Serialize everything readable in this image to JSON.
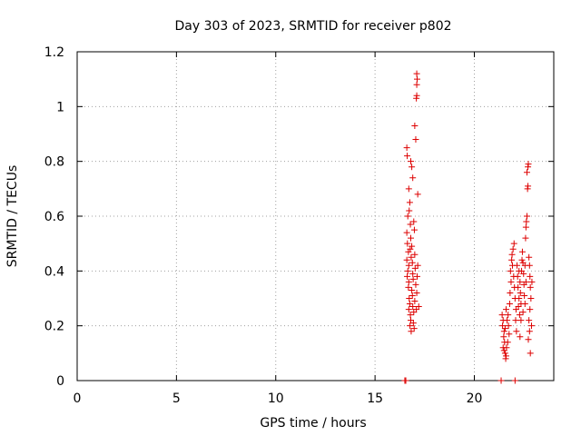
{
  "chart_data": {
    "type": "scatter",
    "title": "Day 303 of 2023, SRMTID for receiver p802",
    "xlabel": "GPS time / hours",
    "ylabel": "SRMTID / TECUs",
    "xlim": [
      0,
      24
    ],
    "ylim": [
      0,
      1.2
    ],
    "xticks": [
      0,
      5,
      10,
      15,
      20
    ],
    "yticks": [
      0,
      0.2,
      0.4,
      0.6,
      0.8,
      1,
      1.2
    ],
    "xtick_labels": [
      "0",
      "5",
      "10",
      "15",
      "20"
    ],
    "ytick_labels": [
      "0",
      "0.2",
      "0.4",
      "0.6",
      "0.8",
      "1",
      "1.2"
    ],
    "grid": true,
    "marker": "+",
    "color": "#dd0000",
    "series": [
      {
        "points": [
          [
            16.5,
            0.0
          ],
          [
            16.55,
            0.0
          ],
          [
            16.6,
            0.85
          ],
          [
            16.62,
            0.82
          ],
          [
            16.65,
            0.6
          ],
          [
            16.6,
            0.54
          ],
          [
            16.63,
            0.5
          ],
          [
            16.68,
            0.47
          ],
          [
            16.6,
            0.44
          ],
          [
            16.7,
            0.42
          ],
          [
            16.65,
            0.4
          ],
          [
            16.62,
            0.38
          ],
          [
            16.7,
            0.36
          ],
          [
            16.68,
            0.34
          ],
          [
            16.72,
            0.3
          ],
          [
            16.75,
            0.28
          ],
          [
            16.7,
            0.26
          ],
          [
            16.78,
            0.24
          ],
          [
            16.8,
            0.22
          ],
          [
            16.76,
            0.2
          ],
          [
            16.82,
            0.18
          ],
          [
            16.7,
            0.7
          ],
          [
            16.75,
            0.65
          ],
          [
            16.78,
            0.57
          ],
          [
            16.8,
            0.52
          ],
          [
            16.85,
            0.49
          ],
          [
            16.82,
            0.45
          ],
          [
            16.88,
            0.43
          ],
          [
            16.9,
            0.39
          ],
          [
            16.92,
            0.37
          ],
          [
            16.85,
            0.33
          ],
          [
            16.88,
            0.31
          ],
          [
            16.9,
            0.27
          ],
          [
            16.95,
            0.25
          ],
          [
            16.93,
            0.21
          ],
          [
            16.97,
            0.19
          ],
          [
            16.8,
            0.8
          ],
          [
            16.85,
            0.78
          ],
          [
            16.9,
            0.74
          ],
          [
            16.95,
            0.58
          ],
          [
            17.0,
            0.46
          ],
          [
            17.02,
            0.41
          ],
          [
            17.05,
            0.35
          ],
          [
            17.0,
            0.29
          ],
          [
            17.08,
            0.26
          ],
          [
            17.1,
            0.32
          ],
          [
            17.12,
            0.38
          ],
          [
            17.0,
            0.93
          ],
          [
            17.05,
            0.88
          ],
          [
            17.08,
            1.03
          ],
          [
            17.1,
            1.04
          ],
          [
            17.1,
            1.08
          ],
          [
            17.12,
            1.1
          ],
          [
            17.1,
            1.12
          ],
          [
            17.15,
            0.68
          ],
          [
            17.2,
            0.27
          ],
          [
            17.15,
            0.42
          ],
          [
            16.98,
            0.55
          ],
          [
            16.72,
            0.62
          ],
          [
            16.77,
            0.48
          ]
        ]
      },
      {
        "points": [
          [
            21.35,
            0.0
          ],
          [
            22.05,
            0.0
          ],
          [
            21.4,
            0.24
          ],
          [
            21.45,
            0.22
          ],
          [
            21.42,
            0.2
          ],
          [
            21.5,
            0.18
          ],
          [
            21.48,
            0.16
          ],
          [
            21.52,
            0.14
          ],
          [
            21.45,
            0.12
          ],
          [
            21.5,
            0.11
          ],
          [
            21.55,
            0.1
          ],
          [
            21.6,
            0.09
          ],
          [
            21.58,
            0.08
          ],
          [
            21.62,
            0.12
          ],
          [
            21.55,
            0.19
          ],
          [
            21.65,
            0.22
          ],
          [
            21.7,
            0.24
          ],
          [
            21.6,
            0.26
          ],
          [
            21.72,
            0.2
          ],
          [
            21.75,
            0.17
          ],
          [
            21.68,
            0.14
          ],
          [
            21.78,
            0.28
          ],
          [
            21.8,
            0.32
          ],
          [
            21.85,
            0.36
          ],
          [
            21.82,
            0.4
          ],
          [
            21.88,
            0.44
          ],
          [
            21.9,
            0.46
          ],
          [
            21.95,
            0.48
          ],
          [
            22.0,
            0.5
          ],
          [
            21.92,
            0.42
          ],
          [
            21.98,
            0.38
          ],
          [
            22.02,
            0.34
          ],
          [
            22.05,
            0.3
          ],
          [
            22.1,
            0.26
          ],
          [
            22.08,
            0.22
          ],
          [
            22.12,
            0.18
          ],
          [
            22.15,
            0.42
          ],
          [
            22.18,
            0.38
          ],
          [
            22.2,
            0.34
          ],
          [
            22.25,
            0.3
          ],
          [
            22.22,
            0.27
          ],
          [
            22.28,
            0.24
          ],
          [
            22.3,
            0.36
          ],
          [
            22.32,
            0.32
          ],
          [
            22.35,
            0.28
          ],
          [
            22.38,
            0.4
          ],
          [
            22.4,
            0.44
          ],
          [
            22.42,
            0.47
          ],
          [
            22.45,
            0.43
          ],
          [
            22.48,
            0.39
          ],
          [
            22.5,
            0.35
          ],
          [
            22.52,
            0.31
          ],
          [
            22.55,
            0.28
          ],
          [
            22.58,
            0.52
          ],
          [
            22.6,
            0.56
          ],
          [
            22.62,
            0.58
          ],
          [
            22.65,
            0.6
          ],
          [
            22.68,
            0.7
          ],
          [
            22.7,
            0.71
          ],
          [
            22.65,
            0.76
          ],
          [
            22.7,
            0.78
          ],
          [
            22.72,
            0.79
          ],
          [
            22.75,
            0.45
          ],
          [
            22.78,
            0.42
          ],
          [
            22.8,
            0.38
          ],
          [
            22.82,
            0.34
          ],
          [
            22.85,
            0.3
          ],
          [
            22.8,
            0.26
          ],
          [
            22.75,
            0.22
          ],
          [
            22.78,
            0.18
          ],
          [
            22.72,
            0.15
          ],
          [
            22.82,
            0.1
          ],
          [
            22.88,
            0.2
          ],
          [
            22.9,
            0.36
          ],
          [
            22.55,
            0.42
          ],
          [
            22.6,
            0.36
          ],
          [
            22.45,
            0.25
          ],
          [
            22.35,
            0.22
          ],
          [
            22.3,
            0.16
          ],
          [
            22.25,
            0.4
          ]
        ]
      }
    ]
  }
}
